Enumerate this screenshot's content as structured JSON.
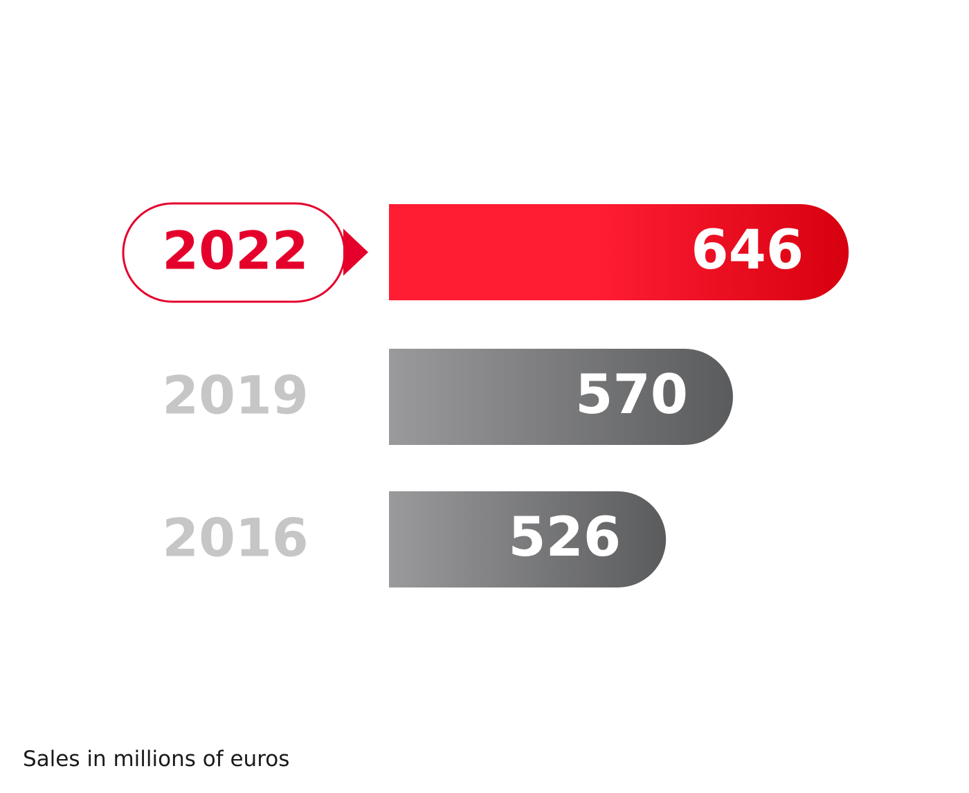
{
  "chart_data": {
    "type": "bar",
    "orientation": "horizontal",
    "categories": [
      "2022",
      "2019",
      "2016"
    ],
    "values": [
      646,
      570,
      526
    ],
    "highlight": "2022",
    "note": "Sales in millions of euros",
    "title": "",
    "xlabel": "",
    "ylabel": "",
    "data_labels": true,
    "grid": false,
    "legend": "none"
  },
  "colors": {
    "highlight_start": "#ff1d34",
    "highlight_end": "#d7000f",
    "highlight_label": "#e4002b",
    "muted_start": "#9a9a9c",
    "muted_end": "#5a5b5d",
    "muted_label": "#c6c6c6",
    "value_text": "#ffffff",
    "caption_text": "#1a1a1a"
  }
}
